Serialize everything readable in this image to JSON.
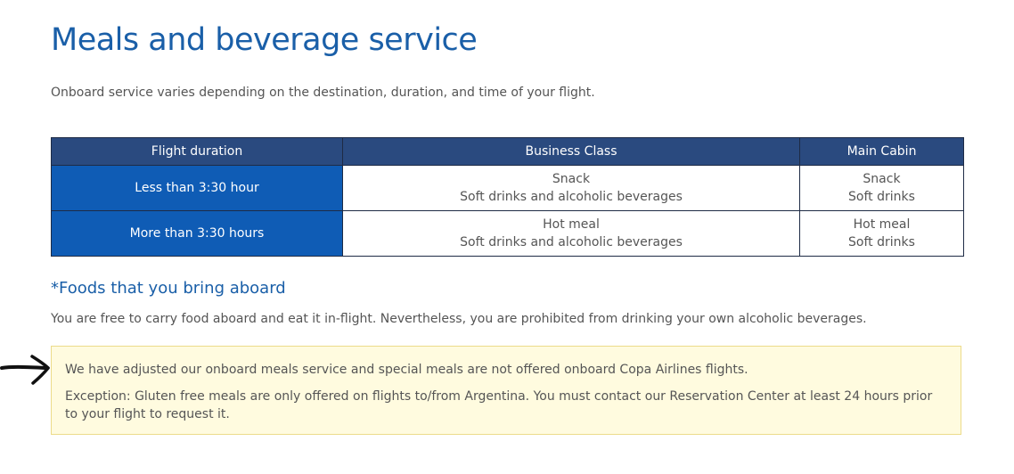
{
  "page": {
    "title": "Meals and beverage service",
    "intro": "Onboard service varies depending on the destination, duration, and time of your flight."
  },
  "table": {
    "headers": [
      "Flight duration",
      "Business Class",
      "Main Cabin"
    ],
    "rows": [
      {
        "duration": "Less than 3:30 hour",
        "business": [
          "Snack",
          "Soft drinks and alcoholic beverages"
        ],
        "main": [
          "Snack",
          "Soft drinks"
        ]
      },
      {
        "duration": "More than 3:30 hours",
        "business": [
          "Hot meal",
          "Soft drinks and alcoholic beverages"
        ],
        "main": [
          "Hot meal",
          "Soft drinks"
        ]
      }
    ]
  },
  "foods": {
    "heading": "*Foods that you bring aboard",
    "text": "You are free to carry food aboard and eat it in-flight. Nevertheless, you are prohibited from drinking your own alcoholic beverages."
  },
  "notice": {
    "line1": "We have adjusted our onboard meals service and special meals are not offered onboard Copa Airlines flights.",
    "line2": "Exception: Gluten free meals are only offered on flights to/from Argentina. You must contact our Reservation Center at least 24 hours prior to your flight to request it."
  },
  "annotation": {
    "icon": "hand-drawn-arrow-icon",
    "color": "#111111"
  },
  "colors": {
    "title_blue": "#1a5fa8",
    "header_bg": "#2a4a7f",
    "duration_bg": "#0f5cb5",
    "notice_bg": "#fffbdf",
    "notice_border": "#ecdb8a"
  }
}
